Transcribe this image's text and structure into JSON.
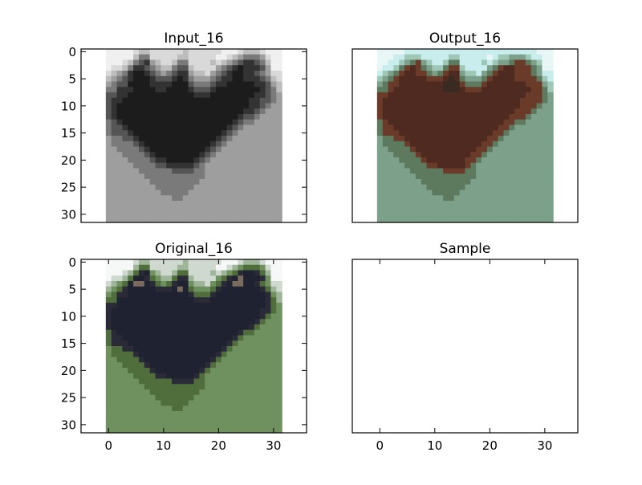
{
  "chart_data": [
    {
      "type": "image",
      "title": "Input_16",
      "xlim": [
        -5,
        36
      ],
      "ylim": [
        31.5,
        -0.5
      ],
      "xticks": [],
      "yticks": [
        0,
        5,
        10,
        15,
        20,
        25,
        30
      ],
      "image_extent": [
        -0.5,
        31.5,
        31.5,
        -0.5
      ],
      "palette": [
        "#f0f0f0",
        "#d9d9d9",
        "#bdbdbd",
        "#9e9e9e",
        "#7a7a7a",
        "#555555",
        "#333333",
        "#1c1c1c"
      ],
      "image": [
        "00000122111111211111100012221000",
        "00000244111112211111001234443100",
        "00012456321124411112123456654200",
        "01124665432245521111345676665300",
        "12346776543456632213456776654311",
        "23456777655567643334566776665421",
        "34557777666677754445667777766532",
        "44666777766777765556777777776542",
        "55667777777777776667777777766543",
        "56677777777777777777777777665543",
        "56777777777777777777777777665433",
        "56777777777777777777777776654333",
        "56777777777777777777777765543333",
        "45677777777777777777777654433333",
        "45567777777777777777776543333333",
        "45556777777777777777765433333333",
        "34455677777777777777654333333333",
        "34444567777777777776543333333333",
        "33444456777777777765433333333333",
        "33344445677777777654333333333333",
        "33334444566777776543333333333333",
        "33333444455666665433333333333333",
        "33333344444455554433333333333333",
        "33333334444444444433333333333333",
        "33333333444444444333333333333333",
        "33333333344444443333333333333333",
        "33333333334444433333333333333333",
        "33333333333344333333333333333333",
        "33333333333333333333333333333333",
        "33333333333333333333333333333333",
        "33333333333333333333333333333333",
        "33333333333333333333333333333333"
      ]
    },
    {
      "type": "image",
      "title": "Output_16",
      "xlim": [
        -5,
        36
      ],
      "ylim": [
        31.5,
        -0.5
      ],
      "xticks": [],
      "yticks": [],
      "image_extent": [
        -0.5,
        31.5,
        31.5,
        -0.5
      ],
      "palette": [
        "#e8f7f6",
        "#c9ecec",
        "#9fc7b5",
        "#7ca08a",
        "#5d7a5f",
        "#6b3b2a",
        "#4e2a20",
        "#3a2b22"
      ],
      "image": [
        "00000111111111111111111111111000",
        "00011222111112211111012233321100",
        "00112345321124411112123345543200",
        "01124565432245521111345665554300",
        "12345665543456632213456665554311",
        "23456666655567643334566665555421",
        "34556666666677754445666666655532",
        "44566666666677765556666666665542",
        "55666666666666666666666666655543",
        "56666666666666666666666666555543",
        "56666666666666666666666666555433",
        "56666666666666666666666665554333",
        "56666666666666666666666655543333",
        "45666666666666666666666554433333",
        "45566666666666666666665543333333",
        "45556666666666666666655433333333",
        "34455666666666666666554333333333",
        "34444566666666666665543333333333",
        "33444456666666666655433333333333",
        "33344445666666666554333333333333",
        "33334444566666665543333333333333",
        "33333444455666665433333333333333",
        "33333344444455554433333333333333",
        "33333334444444444433333333333333",
        "33333333444444444333333333333333",
        "33333333344444443333333333333333",
        "33333333334444433333333333333333",
        "33333333333344333333333333333333",
        "33333333333333333333333333333333",
        "33333333333333333333333333333333",
        "33333333333333333333333333333333",
        "33333333333333333333333333333333"
      ]
    },
    {
      "type": "image",
      "title": "Original_16",
      "xlim": [
        -5,
        36
      ],
      "ylim": [
        31.5,
        -0.5
      ],
      "xticks": [
        0,
        10,
        20,
        30
      ],
      "yticks": [
        0,
        5,
        10,
        15,
        20,
        25,
        30
      ],
      "image_extent": [
        -0.5,
        31.5,
        31.5,
        -0.5
      ],
      "palette": [
        "#f6f8f8",
        "#cfd9cf",
        "#9fb59a",
        "#6f915f",
        "#4f6e3c",
        "#2b2b38",
        "#1f2230",
        "#7a6b5e"
      ],
      "image": [
        "00000122111111211111100012221000",
        "00000244111112211111001234443100",
        "00012456321124411112123456654200",
        "01124665432245521111345676665300",
        "12346776543456632213456776654311",
        "23456666655567643334566666665421",
        "34556666666666654445666666666532",
        "44666666666666665556666666666542",
        "55666666666666666666666666666543",
        "56666666666666666666666666665543",
        "56666666666666666666666666665433",
        "56666666666666666666666666654333",
        "56666666666666666666666666543333",
        "45666666666666666666666654433333",
        "45566666666666666666666543333333",
        "45556666666666666666665433333333",
        "34455666666666666666654333333333",
        "34444566666666666666543333333333",
        "33444456666666666665433333333333",
        "33344445666666666654333333333333",
        "33334444566666666543333333333333",
        "33333444455666665433333333333333",
        "33333344444455554433333333333333",
        "33333334444444444433333333333333",
        "33333333444444444333333333333333",
        "33333333344444443333333333333333",
        "33333333334444433333333333333333",
        "33333333333344333333333333333333",
        "33333333333333333333333333333333",
        "33333333333333333333333333333333",
        "33333333333333333333333333333333",
        "33333333333333333333333333333333"
      ]
    },
    {
      "type": "image",
      "title": "Sample",
      "xlim": [
        -5,
        36
      ],
      "ylim": [
        31.5,
        -0.5
      ],
      "xticks": [
        0,
        10,
        20,
        30
      ],
      "yticks": [],
      "image": []
    }
  ]
}
